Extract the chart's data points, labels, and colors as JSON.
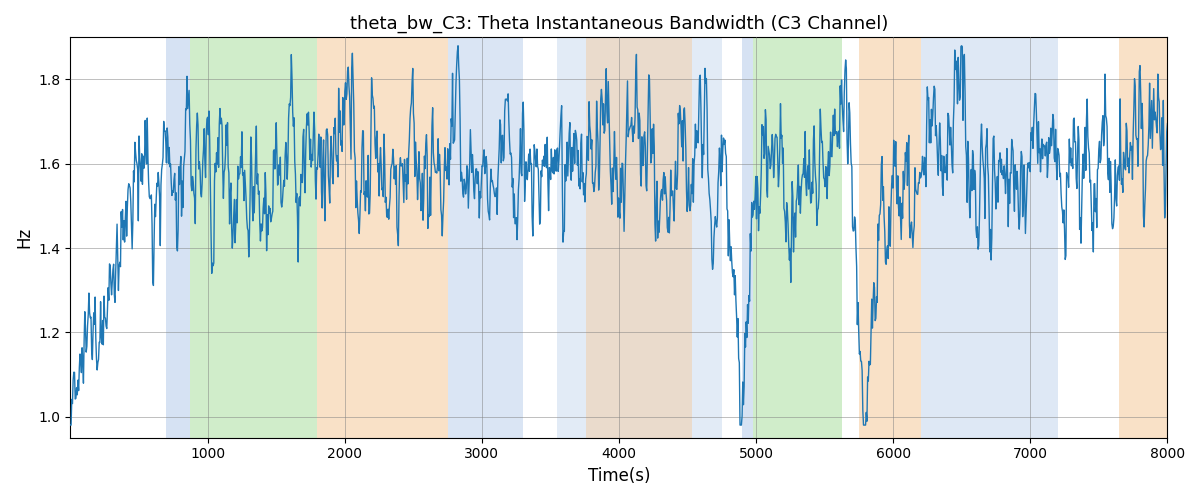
{
  "title": "theta_bw_C3: Theta Instantaneous Bandwidth (C3 Channel)",
  "xlabel": "Time(s)",
  "ylabel": "Hz",
  "xlim": [
    0,
    8000
  ],
  "ylim": [
    0.95,
    1.9
  ],
  "yticks": [
    1.0,
    1.2,
    1.4,
    1.6,
    1.8
  ],
  "xticks": [
    1000,
    2000,
    3000,
    4000,
    5000,
    6000,
    7000,
    8000
  ],
  "line_color": "#1f77b4",
  "line_width": 1.0,
  "background_color": "#ffffff",
  "bands": [
    {
      "xstart": 700,
      "xend": 870,
      "color": "#aec6e8",
      "alpha": 0.5
    },
    {
      "xstart": 870,
      "xend": 1800,
      "color": "#98d88a",
      "alpha": 0.45
    },
    {
      "xstart": 1800,
      "xend": 2750,
      "color": "#f5c99a",
      "alpha": 0.55
    },
    {
      "xstart": 2750,
      "xend": 3300,
      "color": "#aec6e8",
      "alpha": 0.45
    },
    {
      "xstart": 3550,
      "xend": 4750,
      "color": "#aec6e8",
      "alpha": 0.35
    },
    {
      "xstart": 3760,
      "xend": 4530,
      "color": "#f5c99a",
      "alpha": 0.45
    },
    {
      "xstart": 4900,
      "xend": 4980,
      "color": "#aec6e8",
      "alpha": 0.5
    },
    {
      "xstart": 4980,
      "xend": 5630,
      "color": "#98d88a",
      "alpha": 0.45
    },
    {
      "xstart": 5750,
      "xend": 6200,
      "color": "#f5c99a",
      "alpha": 0.55
    },
    {
      "xstart": 6200,
      "xend": 7200,
      "color": "#aec6e8",
      "alpha": 0.4
    },
    {
      "xstart": 7650,
      "xend": 8000,
      "color": "#f5c99a",
      "alpha": 0.55
    }
  ],
  "seed": 12345,
  "n_points": 1600,
  "fs": 0.2
}
